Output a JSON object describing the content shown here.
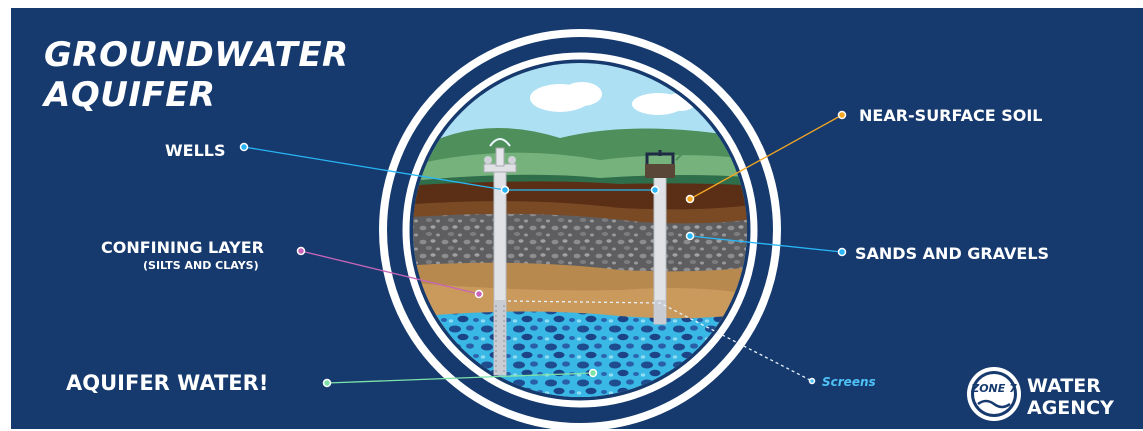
{
  "title": {
    "line1": "GROUNDWATER",
    "line2": "AQUIFER"
  },
  "labels": {
    "wells": "WELLS",
    "confining_layer": "CONFINING LAYER",
    "confining_sub": "(SILTS AND CLAYS)",
    "aquifer_water": "AQUIFER WATER!",
    "near_surface_soil": "NEAR-SURFACE SOIL",
    "sands_gravels": "SANDS AND GRAVELS",
    "screens": "Screens"
  },
  "logo": {
    "badge_text": "ZONE 7",
    "line1": "WATER",
    "line2": "AGENCY"
  },
  "colors": {
    "background": "#163a6e",
    "wells_line": "#29b6f6",
    "soil_line": "#f5a623",
    "sands_line": "#29b6f6",
    "confining_line": "#c865b8",
    "aquifer_line": "#7ee3a8"
  }
}
